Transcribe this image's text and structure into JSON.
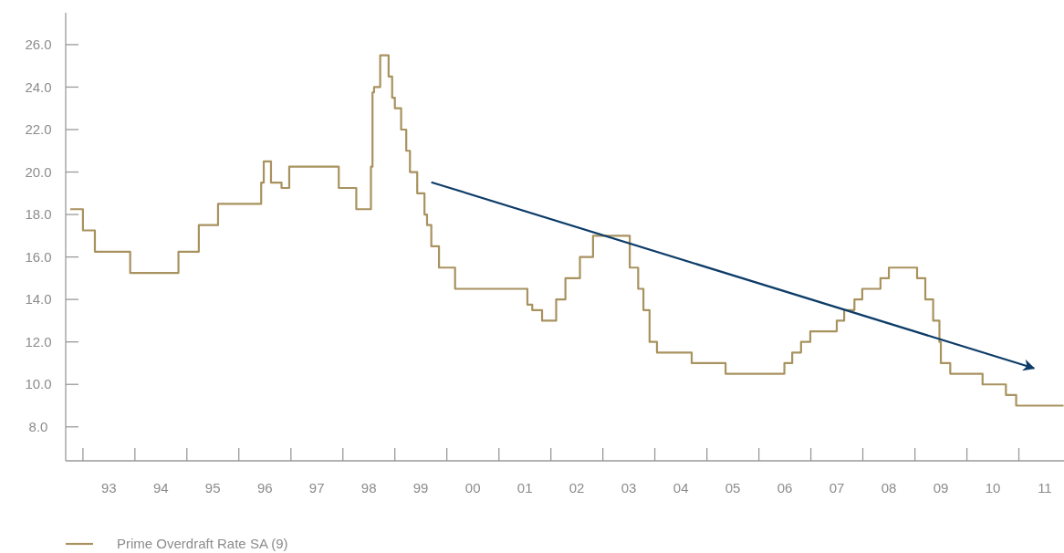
{
  "chart_data": {
    "type": "step",
    "x": [
      "1992-10-04",
      "1993-01-01",
      "1993-03-26",
      "1993-11-29",
      "1994-11-03",
      "1995-03-26",
      "1995-08-08",
      "1996-06-06",
      "1996-06-24",
      "1996-08-14",
      "1996-10-27",
      "1996-12-20",
      "1997-12-03",
      "1998-04-05",
      "1998-07-17",
      "1998-07-28",
      "1998-08-08",
      "1998-09-20",
      "1998-11-18",
      "1998-12-13",
      "1999-01-01",
      "1999-02-14",
      "1999-03-22",
      "1999-04-17",
      "1999-06-07",
      "1999-07-28",
      "1999-08-15",
      "1999-09-14",
      "1999-11-07",
      "2000-02-28",
      "2001-07-20",
      "2001-08-23",
      "2001-10-31",
      "2002-02-07",
      "2002-04-13",
      "2002-07-24",
      "2002-10-24",
      "2003-07-09",
      "2003-09-06",
      "2003-10-13",
      "2003-11-25",
      "2004-01-16",
      "2004-09-16",
      "2005-05-12",
      "2006-06-29",
      "2006-08-23",
      "2006-10-24",
      "2006-12-28",
      "2007-07-02",
      "2007-08-23",
      "2007-11-03",
      "2007-12-28",
      "2008-05-04",
      "2008-07-02",
      "2009-01-16",
      "2009-03-15",
      "2009-05-09",
      "2009-06-22",
      "2009-07-02",
      "2009-09-06",
      "2010-04-21",
      "2010-10-02",
      "2010-12-13",
      "2011-11-11"
    ],
    "series": [
      {
        "name": "Prime Overdraft Rate SA (9)",
        "color": "#a8925f",
        "values": [
          18.25,
          17.25,
          16.25,
          15.25,
          16.25,
          17.5,
          18.5,
          19.5,
          20.5,
          19.5,
          19.25,
          20.25,
          19.25,
          18.25,
          20.25,
          23.75,
          24,
          25.5,
          24.5,
          23.5,
          23,
          22,
          21,
          20,
          19,
          18,
          17.5,
          16.5,
          15.5,
          14.5,
          13.75,
          13.5,
          13,
          14,
          15,
          16,
          17,
          15.5,
          14.5,
          13.5,
          12,
          11.5,
          11,
          10.5,
          11,
          11.5,
          12,
          12.5,
          13,
          13.5,
          14,
          14.5,
          15,
          15.5,
          15,
          14,
          13,
          12,
          11,
          10.5,
          10,
          9.5,
          9,
          9
        ]
      },
      {
        "type": "line",
        "color": "#0d3c68",
        "x": [
          "1999-09-14",
          "2011-04-17"
        ],
        "values": [
          19.52,
          10.76
        ]
      }
    ],
    "xlim": [
      "1992-09-02",
      "2011-11-14"
    ],
    "xticks": [
      {
        "value": "1993",
        "label": null
      },
      {
        "value": "1994",
        "label": null
      },
      {
        "value": "1995",
        "label": null
      },
      {
        "value": "1996",
        "label": null
      },
      {
        "value": "1997",
        "label": null
      },
      {
        "value": "1998",
        "label": null
      },
      {
        "value": "1999",
        "label": null
      },
      {
        "value": "2000",
        "label": null
      },
      {
        "value": "2001",
        "label": null
      },
      {
        "value": "2002",
        "label": null
      },
      {
        "value": "2003",
        "label": null
      },
      {
        "value": "2004",
        "label": null
      },
      {
        "value": "2005",
        "label": null
      },
      {
        "value": "2006",
        "label": null
      },
      {
        "value": "2007",
        "label": null
      },
      {
        "value": "2008",
        "label": null
      },
      {
        "value": "2009",
        "label": null
      },
      {
        "value": "2010",
        "label": null
      },
      {
        "value": "2011",
        "label": null
      },
      {
        "value": "1993-07-02",
        "label": "93"
      },
      {
        "value": "1994-07-02",
        "label": "94"
      },
      {
        "value": "1995-07-02",
        "label": "95"
      },
      {
        "value": "1996-07-02",
        "label": "96"
      },
      {
        "value": "1997-07-02",
        "label": "97"
      },
      {
        "value": "1998-07-02",
        "label": "98"
      },
      {
        "value": "1999-07-02",
        "label": "99"
      },
      {
        "value": "2000-07-02",
        "label": "00"
      },
      {
        "value": "2001-07-02",
        "label": "01"
      },
      {
        "value": "2002-07-02",
        "label": "02"
      },
      {
        "value": "2003-07-02",
        "label": "03"
      },
      {
        "value": "2004-07-02",
        "label": "04"
      },
      {
        "value": "2005-07-02",
        "label": "05"
      },
      {
        "value": "2006-07-02",
        "label": "06"
      },
      {
        "value": "2007-07-02",
        "label": "07"
      },
      {
        "value": "2008-07-02",
        "label": "08"
      },
      {
        "value": "2009-07-02",
        "label": "09"
      },
      {
        "value": "2010-07-02",
        "label": "10"
      },
      {
        "value": "2011-07-02",
        "label": "11"
      }
    ],
    "ylim": [
      6.4,
      27.5
    ],
    "yticks": [
      {
        "value": 8,
        "label": "8.0"
      },
      {
        "value": 10,
        "label": "10.0"
      },
      {
        "value": 12,
        "label": "12.0"
      },
      {
        "value": 14,
        "label": "14.0"
      },
      {
        "value": 16,
        "label": "16.0"
      },
      {
        "value": 18,
        "label": "18.0"
      },
      {
        "value": 20,
        "label": "20.0"
      },
      {
        "value": 22,
        "label": "22.0"
      },
      {
        "value": 24,
        "label": "24.0"
      },
      {
        "value": 26,
        "label": "26.0"
      }
    ],
    "legend": "bottom"
  }
}
